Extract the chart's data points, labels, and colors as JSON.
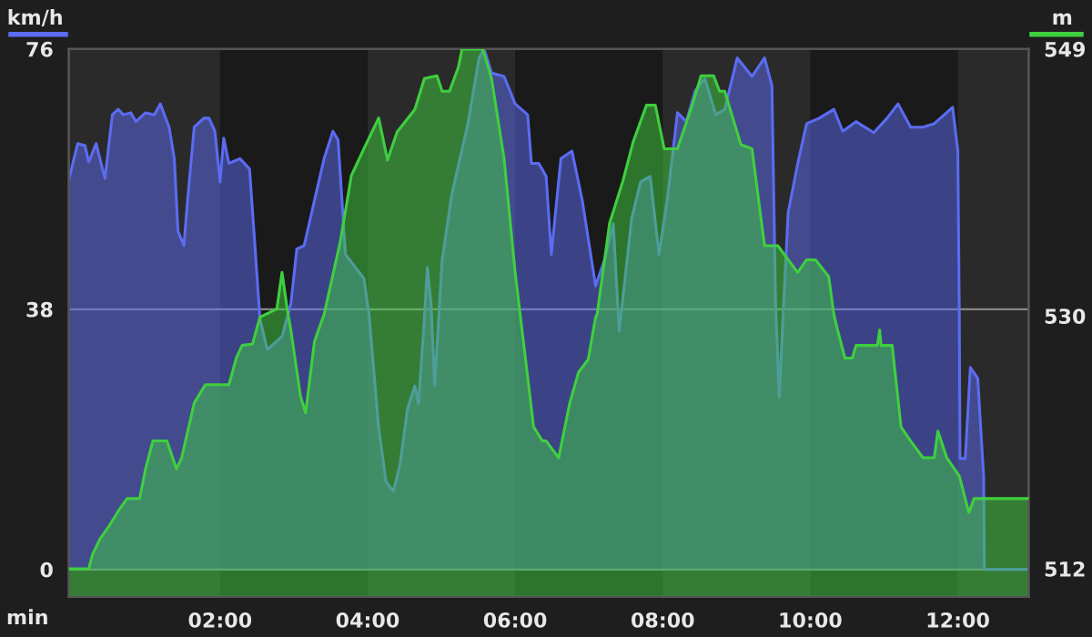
{
  "chart_data": {
    "type": "area",
    "xlabel": "min",
    "ylabel": "km/h",
    "y2label": "m",
    "xlim": [
      -0.05,
      12.96
    ],
    "xticks": [
      {
        "value": 2,
        "label": "02:00"
      },
      {
        "value": 4,
        "label": "04:00"
      },
      {
        "value": 6,
        "label": "06:00"
      },
      {
        "value": 8,
        "label": "08:00"
      },
      {
        "value": 10,
        "label": "10:00"
      },
      {
        "value": 12,
        "label": "12:00"
      }
    ],
    "ylim": [
      -4,
      76
    ],
    "yticks": [
      0,
      38,
      76
    ],
    "y2lim": [
      510,
      549
    ],
    "y2ticks": [
      512,
      530,
      549
    ],
    "grid": "y",
    "legend": false,
    "bands": [
      {
        "axis": "x",
        "from": -0.05,
        "to": 2,
        "color": "#2a2a2a"
      },
      {
        "axis": "x",
        "from": 4,
        "to": 6,
        "color": "#2a2a2a"
      },
      {
        "axis": "x",
        "from": 8,
        "to": 10,
        "color": "#2a2a2a"
      },
      {
        "axis": "x",
        "from": 12,
        "to": 12.96,
        "color": "#2a2a2a"
      }
    ],
    "series": [
      {
        "color": "#5b6cf2",
        "x": [
          -0.05,
          0.07,
          0.17,
          0.22,
          0.32,
          0.44,
          0.54,
          0.62,
          0.69,
          0.79,
          0.86,
          0.99,
          1.11,
          1.19,
          1.31,
          1.38,
          1.43,
          1.51,
          1.56,
          1.65,
          1.78,
          1.85,
          1.93,
          2.0,
          2.05,
          2.12,
          2.27,
          2.4,
          2.47,
          2.54,
          2.64,
          2.84,
          2.96,
          3.04,
          3.14,
          3.28,
          3.41,
          3.53,
          3.6,
          3.7,
          3.95,
          4.02,
          4.15,
          4.25,
          4.35,
          4.44,
          4.54,
          4.64,
          4.69,
          4.77,
          4.81,
          4.86,
          4.91,
          5.01,
          5.14,
          5.36,
          5.51,
          5.58,
          5.68,
          5.85,
          6.0,
          6.17,
          6.22,
          6.32,
          6.42,
          6.49,
          6.62,
          6.77,
          6.91,
          7.09,
          7.21,
          7.33,
          7.41,
          7.58,
          7.7,
          7.83,
          7.95,
          8.07,
          8.2,
          8.32,
          8.44,
          8.57,
          8.72,
          8.84,
          9.01,
          9.21,
          9.38,
          9.48,
          9.53,
          9.58,
          9.63,
          9.7,
          9.83,
          9.95,
          10.12,
          10.32,
          10.44,
          10.62,
          10.86,
          11.04,
          11.19,
          11.36,
          11.53,
          11.68,
          11.93,
          12.0,
          12.02,
          12.03,
          12.1,
          12.17,
          12.27,
          12.35,
          12.36,
          12.96
        ],
        "values": [
          56.9,
          62.2,
          61.9,
          59.5,
          62.2,
          57.1,
          66.4,
          67.2,
          66.4,
          66.7,
          65.4,
          66.7,
          66.4,
          68.0,
          64.6,
          60.0,
          49.4,
          47.3,
          53.9,
          64.6,
          65.9,
          65.9,
          64.0,
          56.6,
          63.0,
          59.3,
          60.0,
          58.5,
          47.8,
          36.7,
          32.1,
          34.0,
          38.8,
          46.8,
          47.3,
          53.9,
          60.0,
          64.0,
          62.7,
          46.0,
          42.5,
          37.2,
          20.7,
          12.8,
          11.4,
          15.4,
          23.4,
          26.8,
          24.2,
          36.7,
          44.1,
          38.8,
          26.8,
          45.2,
          54.7,
          65.1,
          74.7,
          76.0,
          72.5,
          72.0,
          68.0,
          66.4,
          59.3,
          59.3,
          57.4,
          46.0,
          60.0,
          61.1,
          53.9,
          41.4,
          45.2,
          50.5,
          34.8,
          51.3,
          56.6,
          57.4,
          46.0,
          54.7,
          66.7,
          65.4,
          69.9,
          71.7,
          66.4,
          67.2,
          74.7,
          72.0,
          74.7,
          70.7,
          38.8,
          25.2,
          36.7,
          52.1,
          59.3,
          65.1,
          65.9,
          67.2,
          64.0,
          65.4,
          63.8,
          65.9,
          68.0,
          64.6,
          64.6,
          65.1,
          67.5,
          61.1,
          37.2,
          16.2,
          16.2,
          29.5,
          27.9,
          13.6,
          0,
          0
        ]
      },
      {
        "color": "#3fcf3f",
        "axis": "y2",
        "x": [
          -0.05,
          0.22,
          0.27,
          0.37,
          0.49,
          0.62,
          0.74,
          0.91,
          0.99,
          1.09,
          1.28,
          1.41,
          1.48,
          1.65,
          1.8,
          2.12,
          2.22,
          2.3,
          2.44,
          2.54,
          2.77,
          2.84,
          2.91,
          2.96,
          3.09,
          3.16,
          3.28,
          3.41,
          3.63,
          3.78,
          3.95,
          4.15,
          4.27,
          4.4,
          4.64,
          4.77,
          4.94,
          5.01,
          5.11,
          5.23,
          5.28,
          5.56,
          5.68,
          5.85,
          6.0,
          6.25,
          6.37,
          6.42,
          6.59,
          6.74,
          6.86,
          6.99,
          7.09,
          7.11,
          7.28,
          7.46,
          7.6,
          7.78,
          7.9,
          8.02,
          8.2,
          8.4,
          8.52,
          8.69,
          8.77,
          8.84,
          9.06,
          9.21,
          9.38,
          9.56,
          9.7,
          9.83,
          9.95,
          10.07,
          10.25,
          10.32,
          10.37,
          10.47,
          10.57,
          10.62,
          10.91,
          10.94,
          10.96,
          11.11,
          11.23,
          11.36,
          11.53,
          11.68,
          11.73,
          11.85,
          12.02,
          12.15,
          12.22,
          12.35,
          12.96
        ],
        "values": [
          512.0,
          512.0,
          513.0,
          514.1,
          515.0,
          516.1,
          517.0,
          517.0,
          519.1,
          521.1,
          521.1,
          519.1,
          519.9,
          523.8,
          525.1,
          525.1,
          527.0,
          527.9,
          528.0,
          529.9,
          530.5,
          533.1,
          530.5,
          529.0,
          524.3,
          523.1,
          528.2,
          530.1,
          535.3,
          540.0,
          541.9,
          544.1,
          541.1,
          543.1,
          544.7,
          546.9,
          547.1,
          546.0,
          546.0,
          547.7,
          549.0,
          549.0,
          546.9,
          541.2,
          533.1,
          522.1,
          521.1,
          521.1,
          519.9,
          523.8,
          526.0,
          526.9,
          529.9,
          530.1,
          536.6,
          539.6,
          542.4,
          545.0,
          545.0,
          541.9,
          541.9,
          545.0,
          547.1,
          547.1,
          546.0,
          546.0,
          542.2,
          541.9,
          535.0,
          535.0,
          534.0,
          533.1,
          534.0,
          534.0,
          532.8,
          530.1,
          529.0,
          527.0,
          527.0,
          527.9,
          527.9,
          529.0,
          527.9,
          527.9,
          522.1,
          521.1,
          519.9,
          519.9,
          521.8,
          519.9,
          518.6,
          516.0,
          517.0,
          517.0,
          517.0
        ]
      }
    ]
  }
}
